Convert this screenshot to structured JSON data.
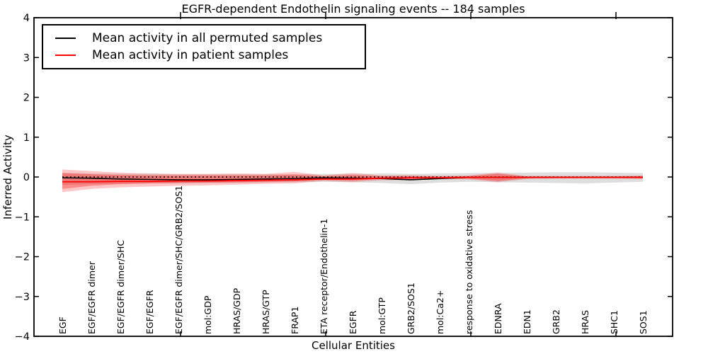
{
  "title": "EGFR-dependent Endothelin signaling events -- 184 samples",
  "legend": {
    "items": [
      {
        "label": "Mean activity in all permuted samples",
        "color": "#000000"
      },
      {
        "label": "Mean activity in patient samples",
        "color": "#ff0000"
      }
    ]
  },
  "chart_data": {
    "type": "line",
    "title": "EGFR-dependent Endothelin signaling events -- 184 samples",
    "xlabel": "Cellular Entities",
    "ylabel": "Inferred Activity",
    "ylim": [
      -4,
      4
    ],
    "yticks": [
      -4,
      -3,
      -2,
      -1,
      0,
      1,
      2,
      3,
      4
    ],
    "ytick_labels": [
      "−4",
      "−3",
      "−2",
      "−1",
      "0",
      "1",
      "2",
      "3",
      "4"
    ],
    "xtick_mark_indices": [
      4,
      9,
      14,
      19
    ],
    "grid": false,
    "legend_position": "upper left",
    "categories": [
      "EGF",
      "EGF/EGFR dimer",
      "EGF/EGFR dimer/SHC",
      "EGF/EGFR",
      "EGF/EGFR dimer/SHC/GRB2/SOS1",
      "mol:GDP",
      "HRAS/GDP",
      "HRAS/GTP",
      "FRAP1",
      "ETA receptor/Endothelin-1",
      "EGFR",
      "mol:GTP",
      "GRB2/SOS1",
      "mol:Ca2+",
      "response to oxidative stress",
      "EDNRA",
      "EDN1",
      "GRB2",
      "HRAS",
      "SHC1",
      "SOS1"
    ],
    "series": [
      {
        "name": "Mean activity in all permuted samples",
        "color": "#000000",
        "style": "solid",
        "values": [
          -0.02,
          -0.03,
          -0.05,
          -0.06,
          -0.07,
          -0.07,
          -0.06,
          -0.05,
          -0.04,
          -0.02,
          -0.03,
          -0.04,
          -0.07,
          -0.04,
          -0.01,
          -0.01,
          -0.01,
          -0.01,
          -0.01,
          -0.01,
          -0.01
        ]
      },
      {
        "name": "Mean activity in patient samples",
        "color": "#ff0000",
        "style": "solid",
        "values": [
          -0.12,
          -0.12,
          -0.11,
          -0.11,
          -0.1,
          -0.1,
          -0.09,
          -0.08,
          -0.07,
          -0.05,
          -0.05,
          -0.03,
          -0.02,
          -0.02,
          -0.01,
          -0.01,
          -0.01,
          -0.01,
          -0.01,
          -0.01,
          -0.01
        ]
      }
    ],
    "bands": [
      {
        "name": "permuted-std-band",
        "fill": "rgba(0,0,0,0.13)",
        "upper": [
          0.1,
          0.09,
          0.08,
          0.08,
          0.07,
          0.07,
          0.07,
          0.07,
          0.07,
          0.08,
          0.08,
          0.09,
          0.08,
          0.09,
          0.1,
          0.11,
          0.11,
          0.12,
          0.12,
          0.11,
          0.1
        ],
        "lower": [
          -0.2,
          -0.18,
          -0.17,
          -0.16,
          -0.16,
          -0.15,
          -0.15,
          -0.14,
          -0.13,
          -0.12,
          -0.13,
          -0.15,
          -0.18,
          -0.14,
          -0.12,
          -0.13,
          -0.14,
          -0.15,
          -0.16,
          -0.14,
          -0.12
        ]
      },
      {
        "name": "patient-std-band-outer",
        "fill": "rgba(255,0,0,0.22)",
        "upper": [
          0.19,
          0.15,
          0.11,
          0.09,
          0.08,
          0.08,
          0.09,
          0.08,
          0.13,
          0.04,
          0.1,
          0.04,
          0.05,
          0.03,
          0.04,
          0.11,
          0.03,
          0.03,
          0.03,
          0.03,
          0.04
        ],
        "lower": [
          -0.38,
          -0.3,
          -0.26,
          -0.24,
          -0.22,
          -0.21,
          -0.19,
          -0.17,
          -0.16,
          -0.1,
          -0.13,
          -0.08,
          -0.08,
          -0.05,
          -0.06,
          -0.13,
          -0.05,
          -0.04,
          -0.04,
          -0.04,
          -0.05
        ]
      },
      {
        "name": "patient-std-band-inner",
        "fill": "rgba(255,0,0,0.30)",
        "upper": [
          0.1,
          0.07,
          0.05,
          0.04,
          0.04,
          0.04,
          0.04,
          0.04,
          0.06,
          0.02,
          0.05,
          0.02,
          0.02,
          0.01,
          0.02,
          0.08,
          0.01,
          0.01,
          0.01,
          0.01,
          0.02
        ],
        "lower": [
          -0.3,
          -0.22,
          -0.18,
          -0.16,
          -0.15,
          -0.14,
          -0.13,
          -0.12,
          -0.11,
          -0.07,
          -0.09,
          -0.05,
          -0.05,
          -0.03,
          -0.04,
          -0.1,
          -0.03,
          -0.02,
          -0.02,
          -0.02,
          -0.03
        ]
      }
    ],
    "zero_line": {
      "y": 0,
      "style": "dotted",
      "color": "#000000"
    }
  }
}
